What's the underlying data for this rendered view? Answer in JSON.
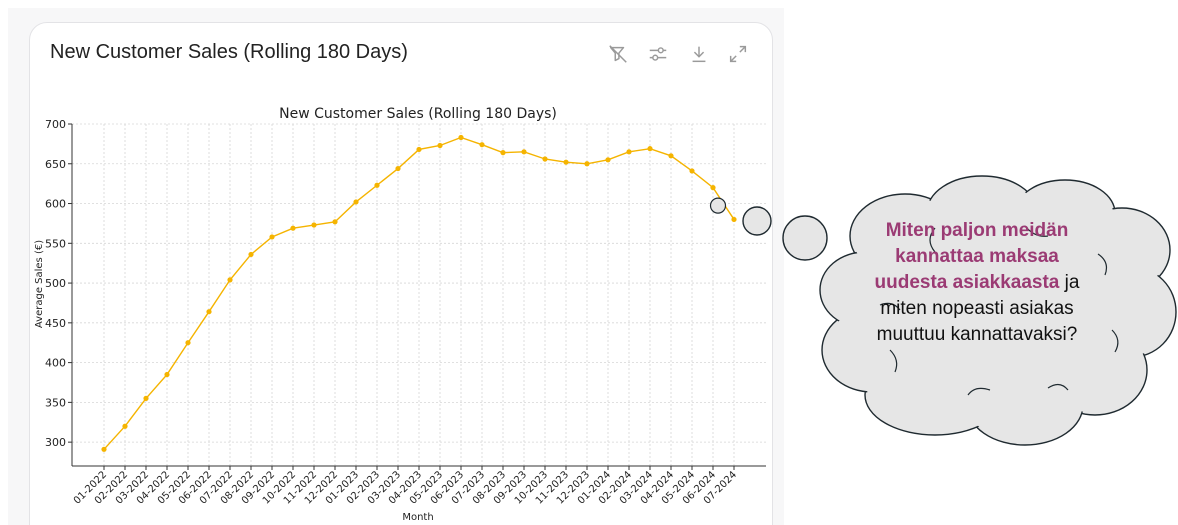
{
  "card": {
    "title": "New Customer Sales (Rolling 180 Days)",
    "toolbar_icons": [
      "filter-off-icon",
      "sliders-icon",
      "download-icon",
      "expand-icon"
    ]
  },
  "chart_data": {
    "type": "line",
    "title": "New Customer Sales (Rolling 180 Days)",
    "xlabel": "Month",
    "ylabel": "Average Sales (€)",
    "categories": [
      "01-2022",
      "02-2022",
      "03-2022",
      "04-2022",
      "05-2022",
      "06-2022",
      "07-2022",
      "08-2022",
      "09-2022",
      "10-2022",
      "11-2022",
      "12-2022",
      "01-2023",
      "02-2023",
      "03-2023",
      "04-2023",
      "05-2023",
      "06-2023",
      "07-2023",
      "08-2023",
      "09-2023",
      "10-2023",
      "11-2023",
      "12-2023",
      "01-2024",
      "02-2024",
      "03-2024",
      "04-2024",
      "05-2024",
      "06-2024",
      "07-2024"
    ],
    "values": [
      291,
      320,
      355,
      385,
      425,
      464,
      504,
      536,
      558,
      569,
      573,
      577,
      602,
      623,
      644,
      668,
      673,
      683,
      674,
      664,
      665,
      656,
      652,
      650,
      655,
      665,
      669,
      660,
      641,
      620,
      580
    ],
    "ylim": [
      270,
      700
    ],
    "yticks": [
      300,
      350,
      400,
      450,
      500,
      550,
      600,
      650,
      700
    ],
    "grid": true,
    "line_color": "#f5b400",
    "highlight_index": 29
  },
  "thought_bubble": {
    "highlight_text": "Miten paljon meidän kannattaa maksaa uudesta asiakkaasta",
    "rest_text": " ja miten nopeasti asiakas muuttuu kannattavaksi?",
    "highlight_color": "#9b3b74",
    "fill_color": "#e6e6e6"
  }
}
